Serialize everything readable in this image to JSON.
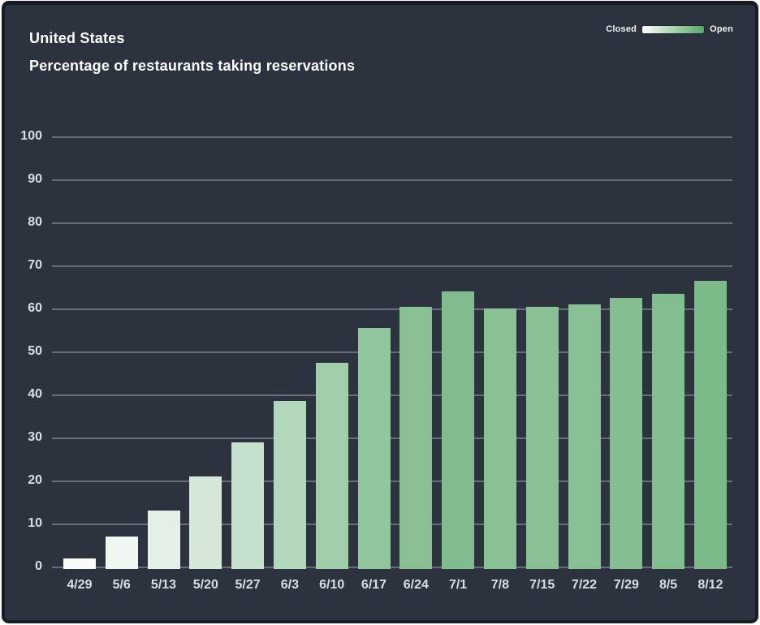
{
  "header": {
    "title": "United States",
    "subtitle": "Percentage of restaurants taking reservations"
  },
  "legend": {
    "closed_label": "Closed",
    "open_label": "Open",
    "gradient_start": "#ffffff",
    "gradient_end": "#54a868"
  },
  "colors": {
    "page_background": "#ffffff",
    "card_background": "#2c333f",
    "card_border": "#171c24",
    "gridline": "#656d7b",
    "axis_label": "#dbdfe5",
    "title_text": "#ffffff"
  },
  "chart_data": {
    "type": "bar",
    "title": "United States",
    "subtitle": "Percentage of restaurants taking reservations",
    "categories": [
      "4/29",
      "5/6",
      "5/13",
      "5/20",
      "5/27",
      "6/3",
      "6/10",
      "6/17",
      "6/24",
      "7/1",
      "7/8",
      "7/15",
      "7/22",
      "7/29",
      "8/5",
      "8/12"
    ],
    "values": [
      2.5,
      7.5,
      13.5,
      21.5,
      29.5,
      39,
      48,
      56,
      61,
      64.5,
      60.5,
      61,
      61.5,
      63,
      64,
      67
    ],
    "bar_colors": [
      "#fafcfa",
      "#f0f7f1",
      "#e4f1e7",
      "#d5e8d9",
      "#c5e0cb",
      "#b3d7bb",
      "#a1cdab",
      "#91c59d",
      "#88c094",
      "#81bc8e",
      "#89c195",
      "#88c094",
      "#87c094",
      "#84be91",
      "#82bd8f",
      "#7cba8a"
    ],
    "xlabel": "",
    "ylabel": "",
    "ylim": [
      0,
      100
    ],
    "ytick_step": 10,
    "grid": true,
    "legend_position": "top-right",
    "color_scale": {
      "low_label": "Closed",
      "high_label": "Open",
      "low_color": "#ffffff",
      "high_color": "#54a868"
    }
  }
}
